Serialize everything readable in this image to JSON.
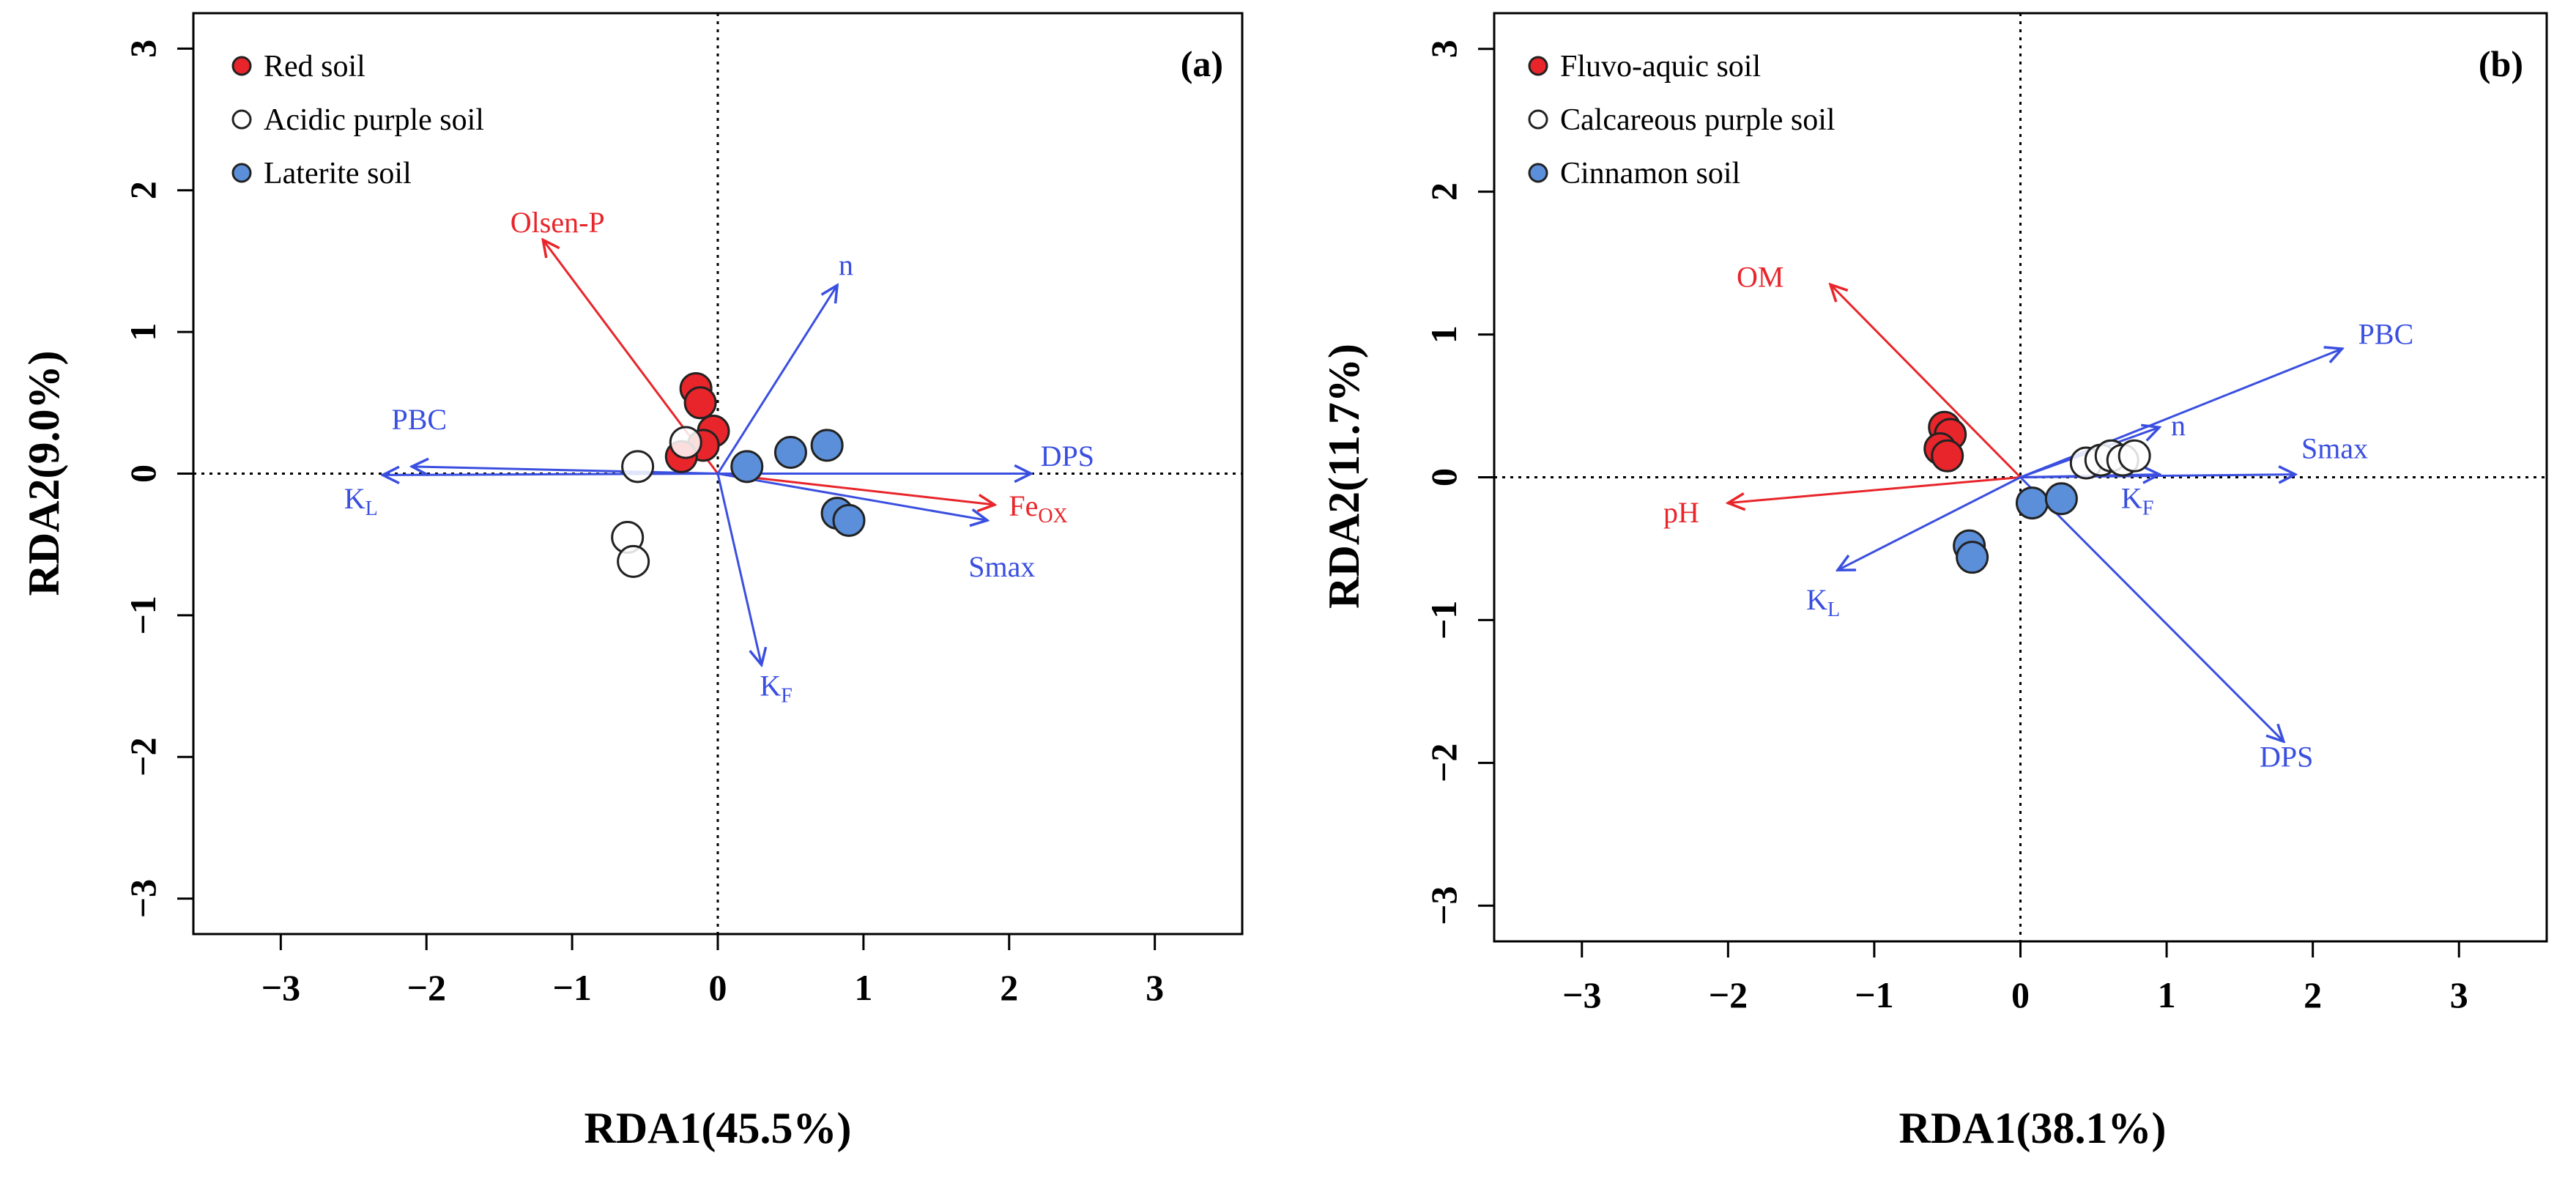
{
  "chart_data": [
    {
      "type": "scatter",
      "panel_label": "(a)",
      "xlabel": "RDA1(45.5%)",
      "ylabel": "RDA2(9.0%)",
      "xlim": [
        -3.6,
        3.6
      ],
      "ylim": [
        -3.25,
        3.25
      ],
      "xticks": [
        "−3",
        "−2",
        "−1",
        "0",
        "1",
        "2",
        "3"
      ],
      "yticks": [
        "−3",
        "−2",
        "−1",
        "0",
        "1",
        "2",
        "3"
      ],
      "legend": [
        {
          "label": "Red soil",
          "color": "#e8252a"
        },
        {
          "label": "Acidic purple soil",
          "color": "#ffffff"
        },
        {
          "label": "Laterite soil",
          "color": "#5b8fd9"
        }
      ],
      "points": [
        {
          "group": "Red soil",
          "x": -0.15,
          "y": 0.6
        },
        {
          "group": "Red soil",
          "x": -0.12,
          "y": 0.5
        },
        {
          "group": "Red soil",
          "x": -0.03,
          "y": 0.3
        },
        {
          "group": "Red soil",
          "x": -0.1,
          "y": 0.2
        },
        {
          "group": "Red soil",
          "x": -0.25,
          "y": 0.12
        },
        {
          "group": "Acidic purple soil",
          "x": -0.55,
          "y": 0.05
        },
        {
          "group": "Acidic purple soil",
          "x": -0.22,
          "y": 0.22
        },
        {
          "group": "Acidic purple soil",
          "x": -0.62,
          "y": -0.45
        },
        {
          "group": "Acidic purple soil",
          "x": -0.58,
          "y": -0.62
        },
        {
          "group": "Laterite soil",
          "x": 0.2,
          "y": 0.05
        },
        {
          "group": "Laterite soil",
          "x": 0.5,
          "y": 0.15
        },
        {
          "group": "Laterite soil",
          "x": 0.75,
          "y": 0.2
        },
        {
          "group": "Laterite soil",
          "x": 0.82,
          "y": -0.28
        },
        {
          "group": "Laterite soil",
          "x": 0.9,
          "y": -0.33
        }
      ],
      "arrows": [
        {
          "label": "Olsen-P",
          "sub": "",
          "x": -1.2,
          "y": 1.65,
          "color": "#e8252a",
          "lx": -1.1,
          "ly": 1.75
        },
        {
          "label": "Fe",
          "sub": "OX",
          "x": 1.9,
          "y": -0.22,
          "color": "#e8252a",
          "lx": 2.2,
          "ly": -0.25
        },
        {
          "label": "n",
          "sub": "",
          "x": 0.82,
          "y": 1.33,
          "color": "#3a4fe0",
          "lx": 0.88,
          "ly": 1.45
        },
        {
          "label": "DPS",
          "sub": "",
          "x": 2.15,
          "y": 0.0,
          "color": "#3a4fe0",
          "lx": 2.4,
          "ly": 0.1
        },
        {
          "label": "Smax",
          "sub": "",
          "x": 1.85,
          "y": -0.33,
          "color": "#3a4fe0",
          "lx": 1.95,
          "ly": -0.68
        },
        {
          "label": "PBC",
          "sub": "",
          "x": -2.1,
          "y": 0.05,
          "color": "#3a4fe0",
          "lx": -2.05,
          "ly": 0.36
        },
        {
          "label": "K",
          "sub": "L",
          "x": -2.3,
          "y": -0.01,
          "color": "#3a4fe0",
          "lx": -2.45,
          "ly": -0.2
        },
        {
          "label": "K",
          "sub": "F",
          "x": 0.3,
          "y": -1.35,
          "color": "#3a4fe0",
          "lx": 0.4,
          "ly": -1.52
        }
      ]
    },
    {
      "type": "scatter",
      "panel_label": "(b)",
      "xlabel": "RDA1(38.1%)",
      "ylabel": "RDA2(11.7%)",
      "xlim": [
        -3.6,
        3.6
      ],
      "ylim": [
        -3.25,
        3.25
      ],
      "xticks": [
        "−3",
        "−2",
        "−1",
        "0",
        "1",
        "2",
        "3"
      ],
      "yticks": [
        "−3",
        "−2",
        "−1",
        "0",
        "1",
        "2",
        "3"
      ],
      "legend": [
        {
          "label": "Fluvo-aquic soil",
          "color": "#e8252a"
        },
        {
          "label": "Calcareous purple soil",
          "color": "#ffffff"
        },
        {
          "label": "Cinnamon soil",
          "color": "#5b8fd9"
        }
      ],
      "points": [
        {
          "group": "Fluvo-aquic soil",
          "x": -0.52,
          "y": 0.35
        },
        {
          "group": "Fluvo-aquic soil",
          "x": -0.48,
          "y": 0.3
        },
        {
          "group": "Fluvo-aquic soil",
          "x": -0.55,
          "y": 0.2
        },
        {
          "group": "Fluvo-aquic soil",
          "x": -0.5,
          "y": 0.15
        },
        {
          "group": "Calcareous purple soil",
          "x": 0.45,
          "y": 0.1
        },
        {
          "group": "Calcareous purple soil",
          "x": 0.55,
          "y": 0.12
        },
        {
          "group": "Calcareous purple soil",
          "x": 0.62,
          "y": 0.15
        },
        {
          "group": "Calcareous purple soil",
          "x": 0.7,
          "y": 0.12
        },
        {
          "group": "Calcareous purple soil",
          "x": 0.78,
          "y": 0.15
        },
        {
          "group": "Cinnamon soil",
          "x": 0.08,
          "y": -0.18
        },
        {
          "group": "Cinnamon soil",
          "x": 0.28,
          "y": -0.15
        },
        {
          "group": "Cinnamon soil",
          "x": -0.35,
          "y": -0.48
        },
        {
          "group": "Cinnamon soil",
          "x": -0.33,
          "y": -0.56
        }
      ],
      "arrows": [
        {
          "label": "OM",
          "sub": "",
          "x": -1.3,
          "y": 1.35,
          "color": "#e8252a",
          "lx": -1.78,
          "ly": 1.38
        },
        {
          "label": "pH",
          "sub": "",
          "x": -2.0,
          "y": -0.18,
          "color": "#e8252a",
          "lx": -2.32,
          "ly": -0.27
        },
        {
          "label": "PBC",
          "sub": "",
          "x": 2.2,
          "y": 0.9,
          "color": "#3a4fe0",
          "lx": 2.5,
          "ly": 0.98
        },
        {
          "label": "n",
          "sub": "",
          "x": 0.95,
          "y": 0.35,
          "color": "#3a4fe0",
          "lx": 1.08,
          "ly": 0.34
        },
        {
          "label": "Smax",
          "sub": "",
          "x": 1.88,
          "y": 0.02,
          "color": "#3a4fe0",
          "lx": 2.15,
          "ly": 0.18
        },
        {
          "label": "K",
          "sub": "F",
          "x": 0.95,
          "y": 0.02,
          "color": "#3a4fe0",
          "lx": 0.8,
          "ly": -0.17
        },
        {
          "label": "K",
          "sub": "L",
          "x": -1.25,
          "y": -0.65,
          "color": "#3a4fe0",
          "lx": -1.35,
          "ly": -0.88
        },
        {
          "label": "DPS",
          "sub": "",
          "x": 1.8,
          "y": -1.85,
          "color": "#3a4fe0",
          "lx": 1.82,
          "ly": -1.98
        }
      ]
    }
  ]
}
